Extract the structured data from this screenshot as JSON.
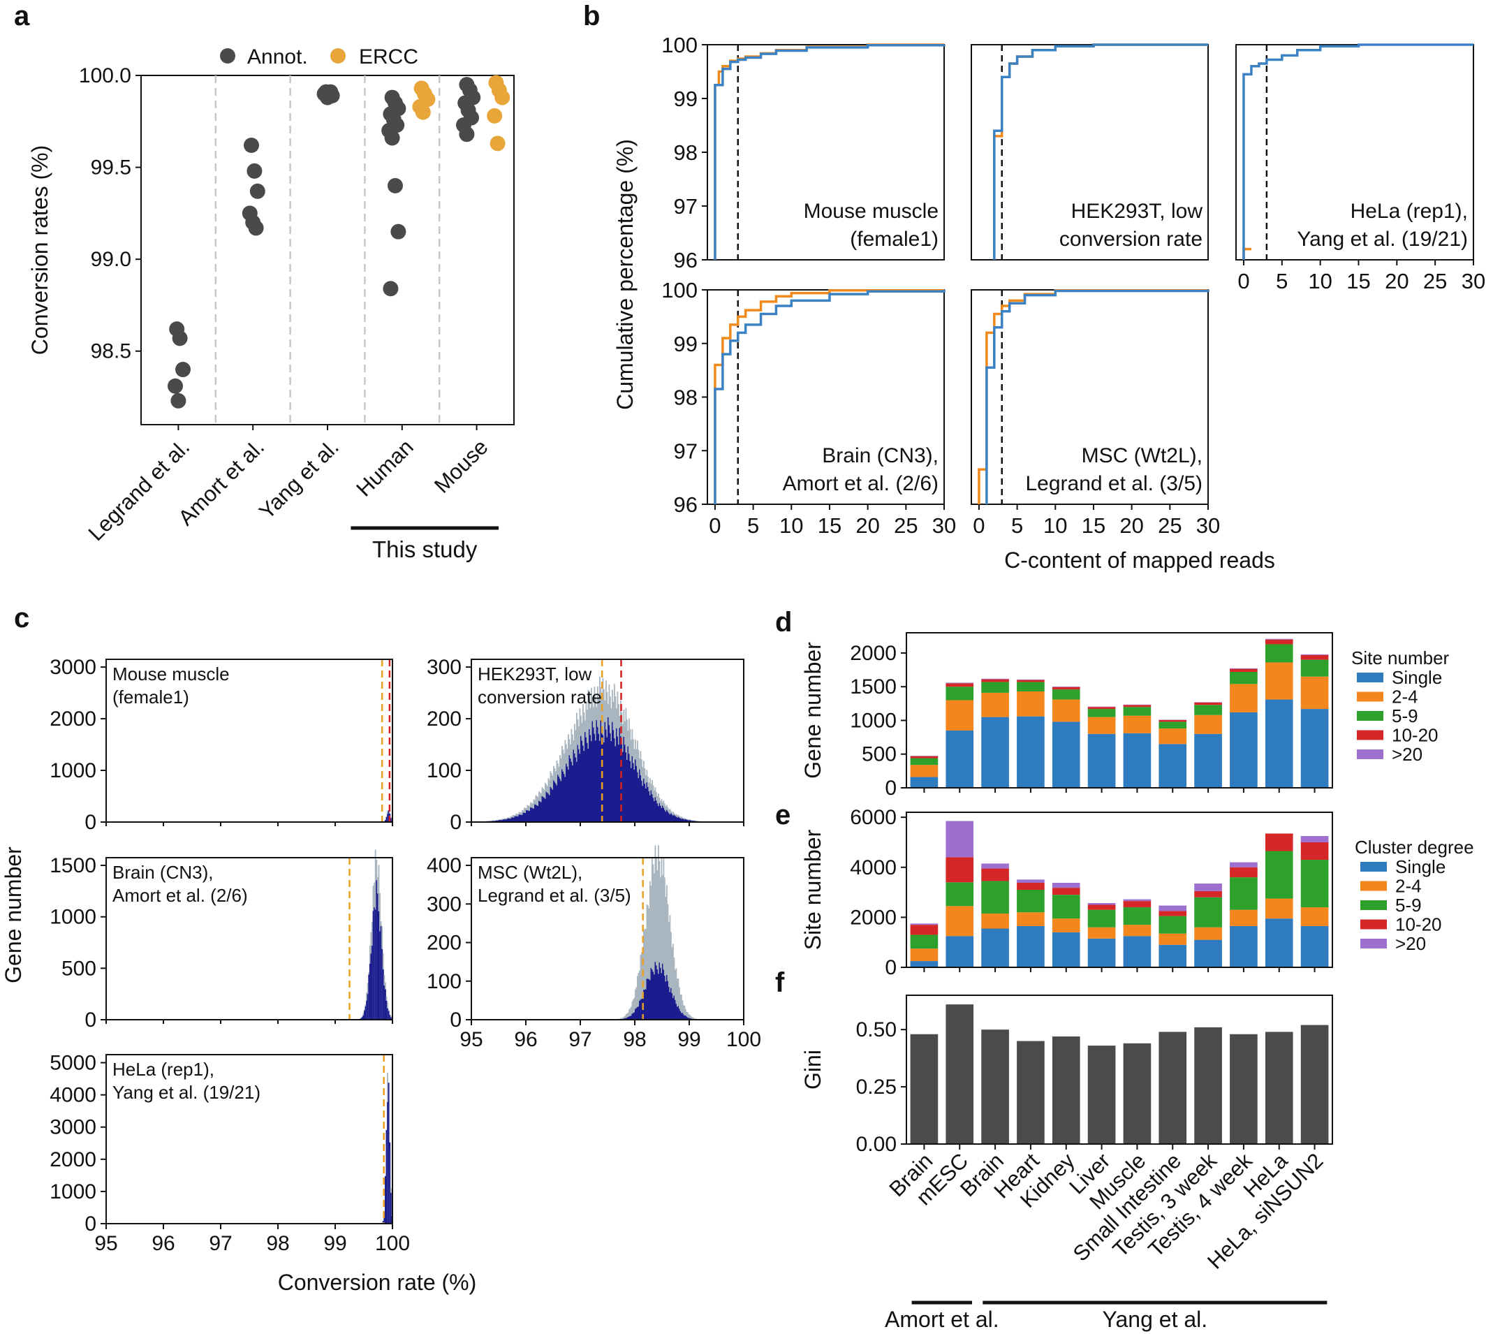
{
  "panel_labels": {
    "a": "a",
    "b": "b",
    "c": "c",
    "d": "d",
    "e": "e",
    "f": "f"
  },
  "colors": {
    "annot": "#4a4a4a",
    "ercc": "#e8a63a",
    "cum_blue": "#3b82c4",
    "cum_orange": "#f08a1c",
    "hist_gray": "#a9b6bf",
    "hist_navy": "#1b1d8f",
    "line_orange": "#e8a020",
    "line_red": "#d42020",
    "single": "#2f7bbf",
    "c2_4": "#f3861c",
    "c5_9": "#2ea02c",
    "c10_20": "#d62728",
    "c20p": "#9d6fcf",
    "gini": "#4b4b4b"
  },
  "chart_data": [
    {
      "id": "a",
      "type": "scatter",
      "ylabel": "Conversion rates (%)",
      "ylim": [
        98.1,
        100.0
      ],
      "yticks": [
        98.5,
        99.0,
        99.5,
        100.0
      ],
      "ytick_labels": [
        "98.5",
        "99.0",
        "99.5",
        "100.0"
      ],
      "categories": [
        "Legrand et al.",
        "Amort et al.",
        "Yang et al.",
        "Human",
        "Mouse"
      ],
      "legend": [
        "Annot.",
        "ERCC"
      ],
      "group_label": "This study",
      "series": [
        {
          "name": "Annot.",
          "points": [
            {
              "cat": 0,
              "y": 98.62
            },
            {
              "cat": 0,
              "y": 98.57
            },
            {
              "cat": 0,
              "y": 98.4
            },
            {
              "cat": 0,
              "y": 98.31
            },
            {
              "cat": 0,
              "y": 98.23
            },
            {
              "cat": 1,
              "y": 99.62
            },
            {
              "cat": 1,
              "y": 99.48
            },
            {
              "cat": 1,
              "y": 99.37
            },
            {
              "cat": 1,
              "y": 99.25
            },
            {
              "cat": 1,
              "y": 99.2
            },
            {
              "cat": 1,
              "y": 99.17
            },
            {
              "cat": 2,
              "y": 99.91
            },
            {
              "cat": 2,
              "y": 99.9
            },
            {
              "cat": 2,
              "y": 99.89
            },
            {
              "cat": 2,
              "y": 99.9
            },
            {
              "cat": 2,
              "y": 99.88
            },
            {
              "cat": 2,
              "y": 99.91
            },
            {
              "cat": 3,
              "y": 99.88
            },
            {
              "cat": 3,
              "y": 99.85
            },
            {
              "cat": 3,
              "y": 99.82
            },
            {
              "cat": 3,
              "y": 99.79
            },
            {
              "cat": 3,
              "y": 99.76
            },
            {
              "cat": 3,
              "y": 99.73
            },
            {
              "cat": 3,
              "y": 99.7
            },
            {
              "cat": 3,
              "y": 99.66
            },
            {
              "cat": 3,
              "y": 99.4
            },
            {
              "cat": 3,
              "y": 99.15
            },
            {
              "cat": 3,
              "y": 98.84
            },
            {
              "cat": 4,
              "y": 99.95
            },
            {
              "cat": 4,
              "y": 99.92
            },
            {
              "cat": 4,
              "y": 99.88
            },
            {
              "cat": 4,
              "y": 99.85
            },
            {
              "cat": 4,
              "y": 99.81
            },
            {
              "cat": 4,
              "y": 99.77
            },
            {
              "cat": 4,
              "y": 99.73
            },
            {
              "cat": 4,
              "y": 99.68
            }
          ]
        },
        {
          "name": "ERCC",
          "points": [
            {
              "cat": 3,
              "y": 99.93
            },
            {
              "cat": 3,
              "y": 99.9
            },
            {
              "cat": 3,
              "y": 99.87
            },
            {
              "cat": 3,
              "y": 99.83
            },
            {
              "cat": 3,
              "y": 99.8
            },
            {
              "cat": 4,
              "y": 99.96
            },
            {
              "cat": 4,
              "y": 99.92
            },
            {
              "cat": 4,
              "y": 99.88
            },
            {
              "cat": 4,
              "y": 99.78
            },
            {
              "cat": 4,
              "y": 99.63
            }
          ]
        }
      ]
    },
    {
      "id": "b",
      "type": "line",
      "ylabel": "Cumulative percentage (%)",
      "xlabel": "C-content of mapped reads",
      "xlim": [
        -1,
        30
      ],
      "ylim": [
        96,
        100
      ],
      "xticks": [
        0,
        5,
        10,
        15,
        20,
        25,
        30
      ],
      "yticks": [
        96,
        97,
        98,
        99,
        100
      ],
      "threshold_x": 3,
      "subplots": [
        {
          "label1": "Mouse muscle",
          "label2": "(female1)",
          "orange": [
            [
              0,
              96
            ],
            [
              0,
              99.25
            ],
            [
              0.5,
              99.5
            ],
            [
              1,
              99.6
            ],
            [
              2,
              99.7
            ],
            [
              3,
              99.74
            ],
            [
              4,
              99.78
            ],
            [
              6,
              99.84
            ],
            [
              8,
              99.9
            ],
            [
              12,
              99.96
            ],
            [
              20,
              100
            ],
            [
              30,
              100
            ]
          ],
          "blue": [
            [
              0,
              96
            ],
            [
              0,
              99.25
            ],
            [
              1,
              99.55
            ],
            [
              2,
              99.68
            ],
            [
              3,
              99.72
            ],
            [
              4,
              99.76
            ],
            [
              6,
              99.83
            ],
            [
              8,
              99.89
            ],
            [
              12,
              99.95
            ],
            [
              20,
              99.99
            ],
            [
              30,
              100
            ]
          ]
        },
        {
          "label1": "HEK293T, low",
          "label2": "conversion rate",
          "orange": [
            [
              2,
              96
            ],
            [
              2,
              98.3
            ],
            [
              3,
              99.4
            ],
            [
              4,
              99.65
            ],
            [
              5,
              99.78
            ],
            [
              7,
              99.9
            ],
            [
              10,
              99.97
            ],
            [
              15,
              100
            ],
            [
              30,
              100
            ]
          ],
          "blue": [
            [
              2,
              96
            ],
            [
              2,
              98.4
            ],
            [
              3,
              99.4
            ],
            [
              4,
              99.65
            ],
            [
              5,
              99.78
            ],
            [
              7,
              99.9
            ],
            [
              10,
              99.97
            ],
            [
              15,
              100
            ],
            [
              30,
              100
            ]
          ]
        },
        {
          "label1": "HeLa (rep1),",
          "label2": "Yang et al. (19/21)",
          "orange": [
            [
              0,
              96
            ],
            [
              0,
              96.2
            ],
            [
              1,
              96.2
            ]
          ],
          "blue": [
            [
              0,
              96
            ],
            [
              0,
              99.45
            ],
            [
              1,
              99.6
            ],
            [
              2,
              99.65
            ],
            [
              3,
              99.72
            ],
            [
              5,
              99.8
            ],
            [
              7,
              99.9
            ],
            [
              10,
              99.97
            ],
            [
              15,
              100
            ],
            [
              30,
              100
            ]
          ]
        },
        {
          "label1": "Brain (CN3),",
          "label2": "Amort et al. (2/6)",
          "orange": [
            [
              0,
              96
            ],
            [
              0,
              98.6
            ],
            [
              1,
              99.1
            ],
            [
              2,
              99.35
            ],
            [
              3,
              99.5
            ],
            [
              4,
              99.62
            ],
            [
              6,
              99.78
            ],
            [
              8,
              99.88
            ],
            [
              10,
              99.94
            ],
            [
              15,
              99.99
            ],
            [
              30,
              100
            ]
          ],
          "blue": [
            [
              0,
              96
            ],
            [
              0,
              98.15
            ],
            [
              1,
              98.8
            ],
            [
              2,
              99.05
            ],
            [
              3,
              99.2
            ],
            [
              4,
              99.35
            ],
            [
              6,
              99.55
            ],
            [
              8,
              99.7
            ],
            [
              10,
              99.8
            ],
            [
              15,
              99.92
            ],
            [
              20,
              99.97
            ],
            [
              30,
              100
            ]
          ]
        },
        {
          "label1": "MSC (Wt2L),",
          "label2": "Legrand et al. (3/5)",
          "orange": [
            [
              0,
              96
            ],
            [
              0,
              96.65
            ],
            [
              1,
              96.65
            ],
            [
              1,
              99.2
            ],
            [
              2,
              99.55
            ],
            [
              3,
              99.7
            ],
            [
              4,
              99.8
            ],
            [
              6,
              99.92
            ],
            [
              10,
              99.99
            ],
            [
              30,
              100
            ]
          ],
          "blue": [
            [
              1,
              96
            ],
            [
              1,
              98.55
            ],
            [
              2,
              99.3
            ],
            [
              3,
              99.6
            ],
            [
              4,
              99.75
            ],
            [
              6,
              99.9
            ],
            [
              10,
              99.98
            ],
            [
              30,
              100
            ]
          ]
        }
      ]
    },
    {
      "id": "c",
      "type": "histogram",
      "ylabel": "Gene number",
      "xlabel": "Conversion rate (%)",
      "xlim": [
        95,
        100
      ],
      "xticks": [
        95,
        96,
        97,
        98,
        99,
        100
      ],
      "subplots": [
        {
          "label1": "Mouse muscle",
          "label2": "(female1)",
          "ymax": 3000,
          "yticks": [
            0,
            1000,
            2000,
            3000
          ],
          "peak": 99.93,
          "width": 0.03,
          "height_gray": 220,
          "height_navy": 200,
          "vlines": [
            {
              "x": 99.82,
              "color": "orange"
            },
            {
              "x": 99.95,
              "color": "red"
            }
          ]
        },
        {
          "label1": "HEK293T, low",
          "label2": "conversion rate",
          "ymax": 300,
          "yticks": [
            0,
            100,
            200,
            300
          ],
          "peak": 97.45,
          "width": 0.55,
          "height_gray": 255,
          "height_navy": 180,
          "vlines": [
            {
              "x": 97.4,
              "color": "orange"
            },
            {
              "x": 97.75,
              "color": "red"
            }
          ]
        },
        {
          "label1": "Brain (CN3),",
          "label2": "Amort et al. (2/6)",
          "ymax": 1500,
          "yticks": [
            0,
            500,
            1000,
            1500
          ],
          "peak": 99.72,
          "width": 0.09,
          "height_gray": 1520,
          "height_navy": 1200,
          "vlines": [
            {
              "x": 99.25,
              "color": "orange"
            }
          ]
        },
        {
          "label1": "MSC (Wt2L),",
          "label2": "Legrand et al. (3/5)",
          "ymax": 400,
          "yticks": [
            0,
            100,
            200,
            300,
            400
          ],
          "peak": 98.42,
          "width": 0.22,
          "height_gray": 425,
          "height_navy": 140,
          "vlines": [
            {
              "x": 98.15,
              "color": "orange"
            }
          ]
        },
        {
          "label1": "HeLa (rep1),",
          "label2": "Yang et al. (19/21)",
          "ymax": 5000,
          "yticks": [
            0,
            1000,
            2000,
            3000,
            4000,
            5000
          ],
          "peak": 99.92,
          "width": 0.03,
          "height_gray": 4300,
          "height_navy": 4200,
          "vlines": [
            {
              "x": 99.85,
              "color": "orange"
            }
          ]
        }
      ]
    },
    {
      "id": "d",
      "type": "bar",
      "stacked": true,
      "ylabel": "Gene number",
      "ylim": [
        0,
        2300
      ],
      "yticks": [
        0,
        500,
        1000,
        1500,
        2000
      ],
      "legend_title": "Site number",
      "legend": [
        "Single",
        "2-4",
        "5-9",
        "10-20",
        ">20"
      ],
      "series": [
        {
          "name": "Single",
          "values": [
            160,
            850,
            1050,
            1060,
            980,
            800,
            810,
            650,
            800,
            1120,
            1310,
            1170
          ]
        },
        {
          "name": "2-4",
          "values": [
            180,
            450,
            360,
            370,
            330,
            250,
            260,
            230,
            280,
            420,
            550,
            480
          ]
        },
        {
          "name": "5-9",
          "values": [
            100,
            200,
            160,
            140,
            150,
            120,
            130,
            100,
            150,
            180,
            270,
            250
          ]
        },
        {
          "name": "10-20",
          "values": [
            30,
            50,
            40,
            30,
            35,
            30,
            30,
            25,
            35,
            45,
            70,
            70
          ]
        },
        {
          "name": ">20",
          "values": [
            5,
            10,
            8,
            6,
            7,
            5,
            5,
            5,
            6,
            8,
            10,
            10
          ]
        }
      ]
    },
    {
      "id": "e",
      "type": "bar",
      "stacked": true,
      "ylabel": "Site number",
      "ylim": [
        0,
        6200
      ],
      "yticks": [
        0,
        2000,
        4000,
        6000
      ],
      "legend_title": "Cluster degree",
      "legend": [
        "Single",
        "2-4",
        "5-9",
        "10-20",
        ">20"
      ],
      "series": [
        {
          "name": "Single",
          "values": [
            250,
            1250,
            1550,
            1650,
            1400,
            1150,
            1250,
            900,
            1100,
            1650,
            1950,
            1650
          ]
        },
        {
          "name": "2-4",
          "values": [
            500,
            1200,
            600,
            550,
            550,
            450,
            450,
            450,
            500,
            650,
            800,
            750
          ]
        },
        {
          "name": "5-9",
          "values": [
            550,
            950,
            1300,
            900,
            950,
            700,
            700,
            700,
            1200,
            1300,
            1900,
            1900
          ]
        },
        {
          "name": "10-20",
          "values": [
            400,
            1000,
            500,
            280,
            280,
            200,
            250,
            200,
            250,
            400,
            700,
            700
          ]
        },
        {
          "name": ">20",
          "values": [
            50,
            1450,
            200,
            130,
            200,
            70,
            70,
            220,
            300,
            200,
            0,
            250
          ]
        }
      ]
    },
    {
      "id": "f",
      "type": "bar",
      "ylabel": "Gini",
      "ylim": [
        0,
        0.65
      ],
      "yticks": [
        0.0,
        0.25,
        0.5
      ],
      "ytick_labels": [
        "0.00",
        "0.25",
        "0.50"
      ],
      "categories": [
        "Brain",
        "mESC",
        "Brain",
        "Heart",
        "Kidney",
        "Liver",
        "Muscle",
        "Small Intestine",
        "Testis, 3 week",
        "Testis, 4 week",
        "HeLa",
        "HeLa, siNSUN2"
      ],
      "values": [
        0.48,
        0.61,
        0.5,
        0.45,
        0.47,
        0.43,
        0.44,
        0.49,
        0.51,
        0.48,
        0.49,
        0.52
      ],
      "groups": [
        {
          "label": "Amort et al.",
          "from": 0,
          "to": 1
        },
        {
          "label": "Yang et al.",
          "from": 2,
          "to": 11
        }
      ]
    }
  ]
}
